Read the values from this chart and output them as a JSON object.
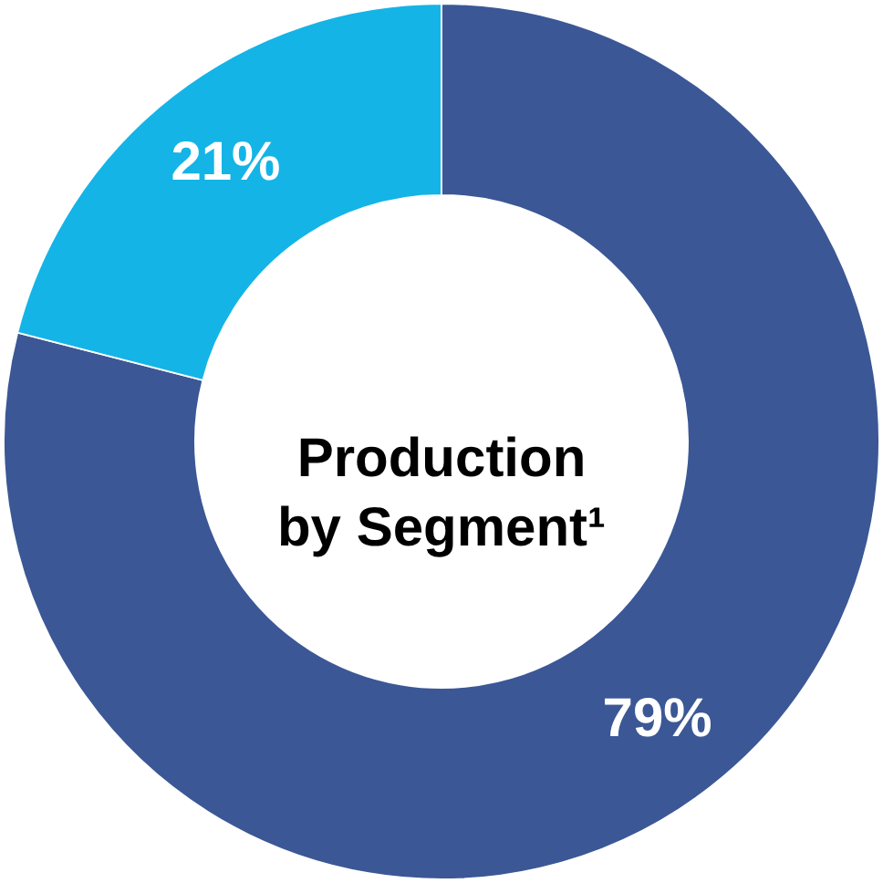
{
  "chart_data": {
    "type": "donut",
    "title": "Production\nby Segment¹",
    "categories": [
      null,
      null
    ],
    "values": [
      79,
      21
    ],
    "colors": [
      "#3b5796",
      "#14b4e6"
    ],
    "value_labels": [
      "79%",
      "21%"
    ]
  }
}
